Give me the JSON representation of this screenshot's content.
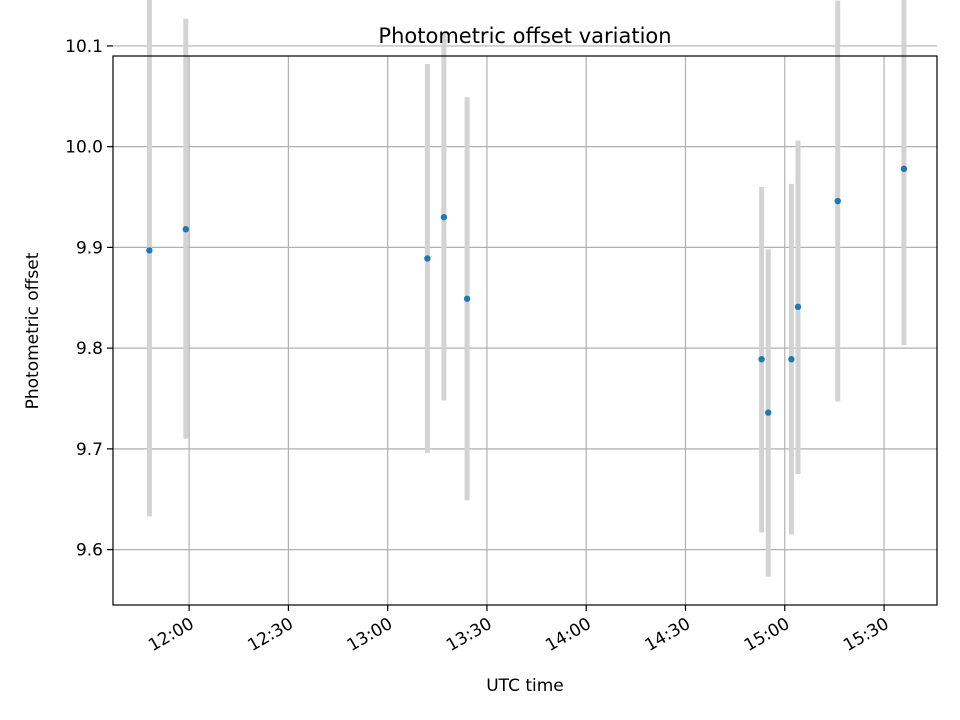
{
  "chart_data": {
    "type": "scatter",
    "title": "Photometric offset variation",
    "xlabel": "UTC time",
    "ylabel": "Photometric offset",
    "grid": true,
    "x_axis": {
      "kind": "time",
      "range": [
        "11:37",
        "15:46"
      ],
      "ticks": [
        "12:00",
        "12:30",
        "13:00",
        "13:30",
        "14:00",
        "14:30",
        "15:00",
        "15:30"
      ]
    },
    "y_axis": {
      "range": [
        9.545,
        10.09
      ],
      "ticks": [
        9.6,
        9.7,
        9.8,
        9.9,
        10.0,
        10.1
      ],
      "tick_labels": [
        "9.6",
        "9.7",
        "9.8",
        "9.9",
        "10.0",
        "10.1"
      ]
    },
    "colors": {
      "marker": "#1f77b4",
      "errorbar": "#d3d3d3",
      "grid": "#b0b0b0"
    },
    "points": [
      {
        "x": "11:48",
        "y": 9.897,
        "err_low": 9.633,
        "err_high": 10.16
      },
      {
        "x": "11:59",
        "y": 9.918,
        "err_low": 9.71,
        "err_high": 10.127
      },
      {
        "x": "13:12",
        "y": 9.889,
        "err_low": 9.696,
        "err_high": 10.082
      },
      {
        "x": "13:17",
        "y": 9.93,
        "err_low": 9.748,
        "err_high": 10.113
      },
      {
        "x": "13:24",
        "y": 9.849,
        "err_low": 9.649,
        "err_high": 10.049
      },
      {
        "x": "14:53",
        "y": 9.789,
        "err_low": 9.617,
        "err_high": 9.96
      },
      {
        "x": "14:55",
        "y": 9.736,
        "err_low": 9.573,
        "err_high": 9.898
      },
      {
        "x": "15:02",
        "y": 9.789,
        "err_low": 9.615,
        "err_high": 9.963
      },
      {
        "x": "15:04",
        "y": 9.841,
        "err_low": 9.675,
        "err_high": 10.006
      },
      {
        "x": "15:16",
        "y": 9.946,
        "err_low": 9.747,
        "err_high": 10.145
      },
      {
        "x": "15:36",
        "y": 9.978,
        "err_low": 9.803,
        "err_high": 10.153
      }
    ]
  }
}
